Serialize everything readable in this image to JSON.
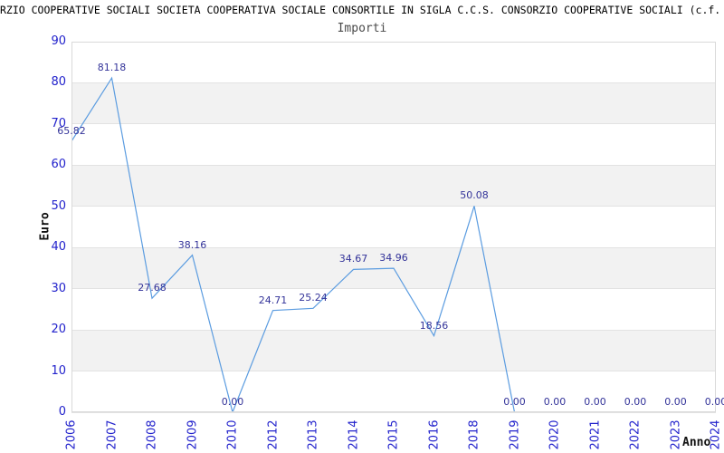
{
  "title": "RZIO COOPERATIVE SOCIALI SOCIETA COOPERATIVA SOCIALE CONSORTILE IN SIGLA C.C.S. CONSORZIO COOPERATIVE SOCIALI (c.f.",
  "subtitle": "Importi",
  "y_axis_title": "Euro",
  "x_axis_title": "Anno",
  "colors": {
    "line": "#5b9ce0",
    "axis_label": "#2222cc",
    "value_label": "#333399",
    "band_gray": "#f2f2f2",
    "gridline": "#e2e2e2",
    "border": "#d9d9d9",
    "title": "#000000",
    "subtitle": "#4a4a4a"
  },
  "chart_data": {
    "type": "line",
    "title": "Importi",
    "xlabel": "Anno",
    "ylabel": "Euro",
    "categories": [
      "2006",
      "2007",
      "2008",
      "2009",
      "2010",
      "2012",
      "2013",
      "2014",
      "2015",
      "2016",
      "2018",
      "2019",
      "2020",
      "2021",
      "2022",
      "2023",
      "2024"
    ],
    "values": [
      65.82,
      81.18,
      27.68,
      38.16,
      0.0,
      24.71,
      25.24,
      34.67,
      34.96,
      18.56,
      50.08,
      0.0,
      0.0,
      0.0,
      0.0,
      0.0,
      0.0
    ],
    "point_labels": [
      "65.82",
      "81.18",
      "27.68",
      "38.16",
      "0.00",
      "24.71",
      "25.24",
      "34.67",
      "34.96",
      "18.56",
      "50.08",
      "0.00",
      "0.00",
      "0.00",
      "0.00",
      "0.00",
      "0.00"
    ],
    "ylim": [
      0,
      90
    ],
    "ytick_step": 10,
    "grid": "horizontal-bands-alternating",
    "legend": "none",
    "markers": "none"
  }
}
